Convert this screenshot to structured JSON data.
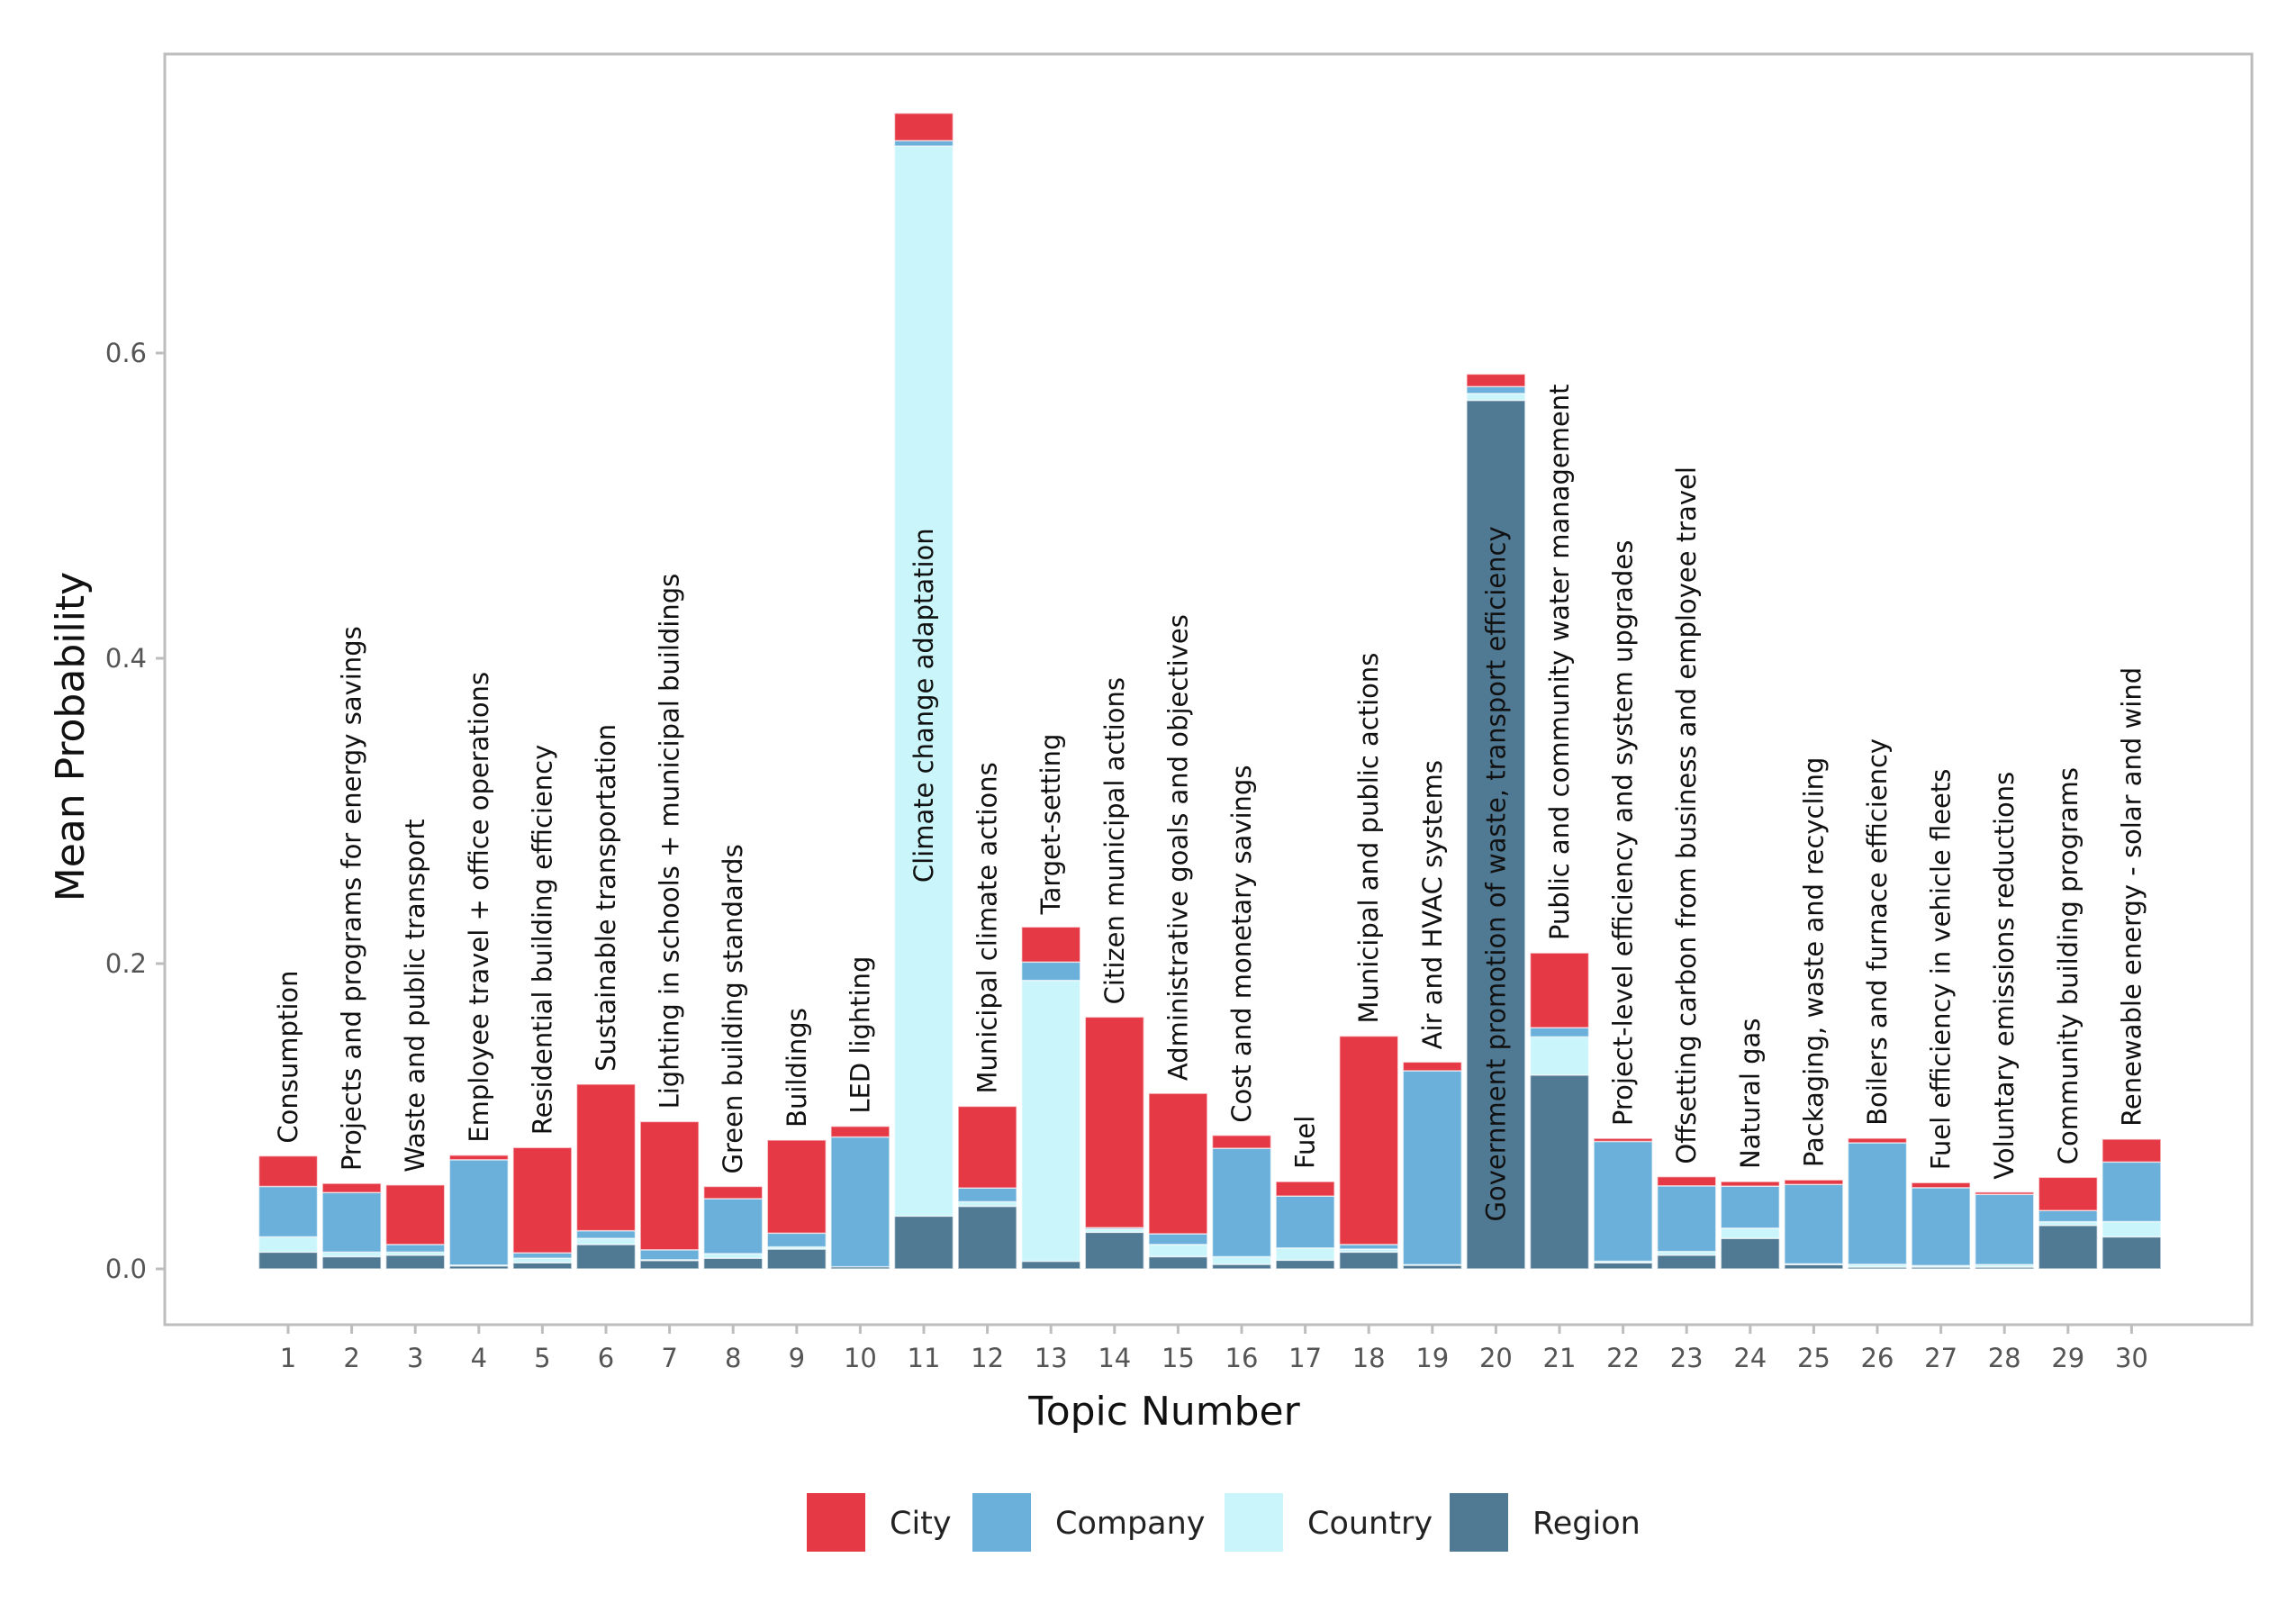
{
  "chart_data": {
    "type": "bar",
    "stacked": true,
    "xlabel": "Topic Number",
    "ylabel": "Mean Probability",
    "ylim": [
      0,
      0.78
    ],
    "yticks": [
      "0.0",
      "0.2",
      "0.4",
      "0.6"
    ],
    "ytick_values": [
      0,
      0.2,
      0.4,
      0.6
    ],
    "grid": false,
    "legend_position": "bottom",
    "categories": [
      "1",
      "2",
      "3",
      "4",
      "5",
      "6",
      "7",
      "8",
      "9",
      "10",
      "11",
      "12",
      "13",
      "14",
      "15",
      "16",
      "17",
      "18",
      "19",
      "20",
      "21",
      "22",
      "23",
      "24",
      "25",
      "26",
      "27",
      "28",
      "29",
      "30"
    ],
    "topic_labels": [
      "Consumption",
      "Projects and programs for energy savings",
      "Waste and public transport",
      "Employee travel + office operations",
      "Residential building efficiency",
      "Sustainable transportation",
      "Lighting in schools + municipal buildings",
      "Green building standards",
      "Buildings",
      "LED lighting",
      "Climate change adaptation",
      "Municipal climate actions",
      "Target-setting",
      "Citizen  municipal actions",
      "Administrative goals and objectives",
      "Cost and monetary savings",
      "Fuel",
      "Municipal and public actions",
      "Air and HVAC systems",
      "Government promotion of waste, transport efficiency",
      "Public and community water management",
      "Project-level efficiency and system upgrades",
      "Offsetting carbon from business and employee travel",
      "Natural gas",
      "Packaging, waste and recycling",
      "Boilers and furnace efficiency",
      "Fuel efficiency in vehicle fleets",
      "Voluntary emissions reductions",
      "Community building programs",
      "Renewable energy - solar and wind"
    ],
    "series": [
      {
        "name": "Region",
        "color": "#507A94",
        "values": [
          0.011,
          0.008,
          0.009,
          0.002,
          0.004,
          0.016,
          0.0055,
          0.007,
          0.013,
          0.0014,
          0.0346,
          0.041,
          0.005,
          0.024,
          0.008,
          0.003,
          0.0057,
          0.011,
          0.0024,
          0.569,
          0.127,
          0.004,
          0.009,
          0.02,
          0.0028,
          0.0012,
          0.0012,
          0.0012,
          0.0285,
          0.021
        ]
      },
      {
        "name": "Country",
        "color": "#C9F5FB",
        "values": [
          0.01,
          0.003,
          0.002,
          0.0005,
          0.003,
          0.004,
          0.0005,
          0.003,
          0.0014,
          0.0,
          0.701,
          0.003,
          0.184,
          0.002,
          0.008,
          0.005,
          0.008,
          0.002,
          0.0004,
          0.0045,
          0.025,
          0.001,
          0.0024,
          0.0067,
          0.0005,
          0.0018,
          0.001,
          0.0016,
          0.0024,
          0.01
        ]
      },
      {
        "name": "Company",
        "color": "#6AB0DA",
        "values": [
          0.033,
          0.039,
          0.005,
          0.069,
          0.0035,
          0.005,
          0.0065,
          0.036,
          0.009,
          0.085,
          0.0035,
          0.009,
          0.012,
          0.001,
          0.007,
          0.071,
          0.034,
          0.003,
          0.127,
          0.0045,
          0.006,
          0.0785,
          0.043,
          0.0275,
          0.052,
          0.0796,
          0.051,
          0.046,
          0.0073,
          0.039
        ]
      },
      {
        "name": "City",
        "color": "#E63946",
        "values": [
          0.02,
          0.006,
          0.039,
          0.003,
          0.069,
          0.096,
          0.084,
          0.008,
          0.061,
          0.007,
          0.018,
          0.0535,
          0.023,
          0.138,
          0.092,
          0.0085,
          0.0095,
          0.1365,
          0.0057,
          0.0082,
          0.049,
          0.002,
          0.006,
          0.003,
          0.003,
          0.003,
          0.0033,
          0.0015,
          0.0218,
          0.015
        ]
      }
    ],
    "legend": [
      "City",
      "Company",
      "Country",
      "Region"
    ]
  }
}
